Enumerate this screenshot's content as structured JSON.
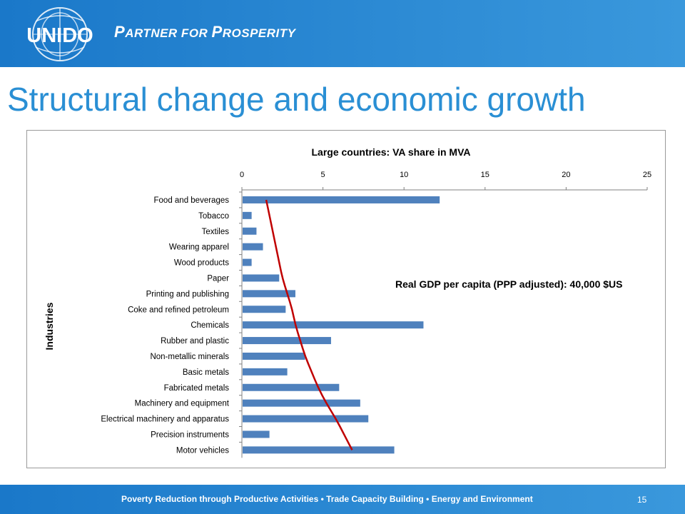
{
  "header": {
    "logo_text": "UNIDO",
    "tagline_first_big": "P",
    "tagline_first_rest": "ARTNER FOR ",
    "tagline_second_big": "P",
    "tagline_second_rest": "ROSPERITY"
  },
  "slide": {
    "title": "Structural change and economic growth",
    "page_number": "15"
  },
  "footer": {
    "text": "Poverty Reduction through Productive Activities  •  Trade Capacity Building  •  Energy and Environment"
  },
  "colors": {
    "brand_blue": "#1a78c9",
    "bar": "#4f81bd",
    "curve": "#c00000",
    "title": "#2a8fd4"
  },
  "chart_data": {
    "type": "bar",
    "orientation": "horizontal",
    "title": "Large countries: VA share in MVA",
    "ylabel": "Industries",
    "xlim": [
      0,
      25
    ],
    "xticks": [
      0,
      5,
      10,
      15,
      20,
      25
    ],
    "x_axis_position": "top",
    "annotation": "Real GDP per capita (PPP adjusted): 40,000 $US",
    "categories": [
      "Food and beverages",
      "Tobacco",
      "Textiles",
      "Wearing apparel",
      "Wood products",
      "Paper",
      "Printing and publishing",
      "Coke and refined petroleum",
      "Chemicals",
      "Rubber and plastic",
      "Non-metallic minerals",
      "Basic metals",
      "Fabricated metals",
      "Machinery and equipment",
      "Electrical machinery and apparatus",
      "Precision instruments",
      "Motor vehicles"
    ],
    "values": [
      12.2,
      0.6,
      0.9,
      1.3,
      0.6,
      2.3,
      3.3,
      2.7,
      11.2,
      5.5,
      3.9,
      2.8,
      6.0,
      7.3,
      7.8,
      1.7,
      9.4
    ],
    "trend_curve": [
      1.5,
      1.7,
      1.9,
      2.1,
      2.3,
      2.5,
      2.8,
      3.1,
      3.3,
      3.6,
      3.9,
      4.3,
      4.7,
      5.2,
      5.8,
      6.3,
      6.8
    ]
  }
}
